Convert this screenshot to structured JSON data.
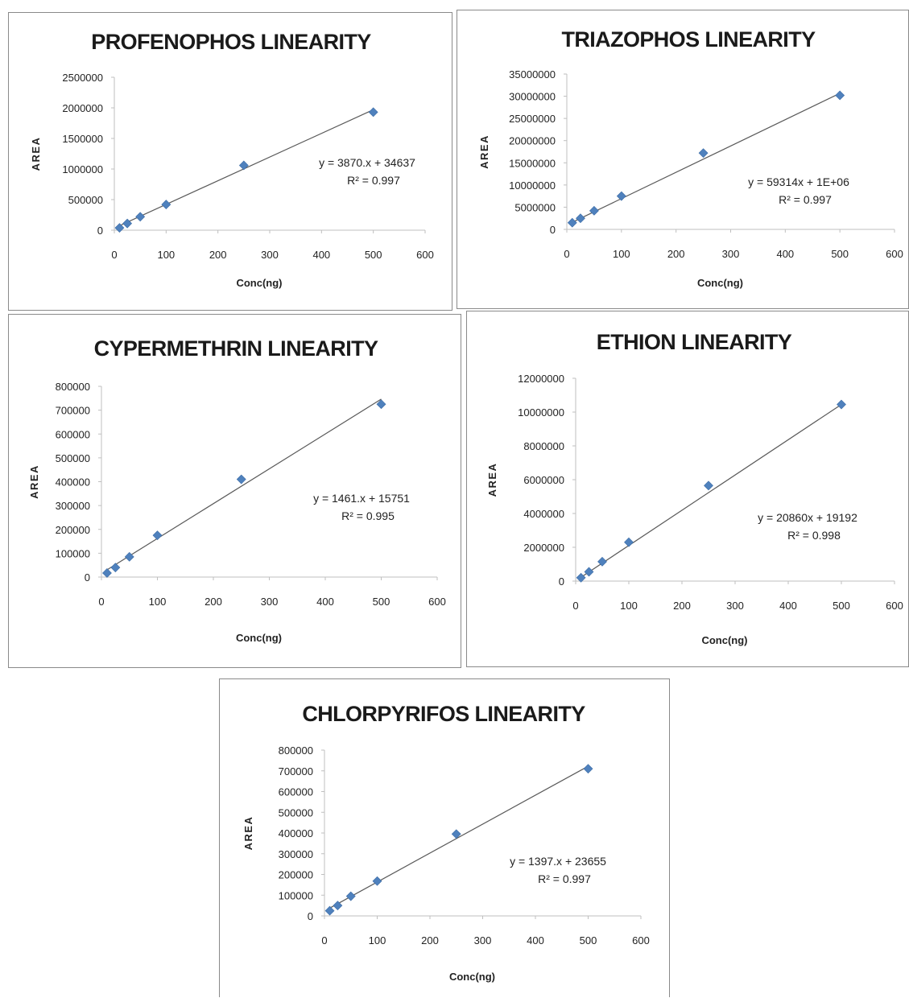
{
  "chart_data": [
    {
      "type": "scatter",
      "title": "PROFENOPHOS LINEARITY",
      "xlabel": "Conc(ng)",
      "ylabel": "AREA",
      "xlim": [
        0,
        600
      ],
      "ylim": [
        0,
        2500000
      ],
      "xticks": [
        "0",
        "100",
        "200",
        "300",
        "400",
        "500",
        "600"
      ],
      "yticks": [
        "0",
        "500000",
        "1000000",
        "1500000",
        "2000000",
        "2500000"
      ],
      "x": [
        10,
        25,
        50,
        100,
        250,
        500
      ],
      "y": [
        38000,
        110000,
        220000,
        420000,
        1060000,
        1930000
      ],
      "equation": "y = 3870.x + 34637",
      "r2": "R² = 0.997",
      "trendline": {
        "slope": 3870,
        "intercept": 34637
      },
      "marker_color": "#4f81bd",
      "line_color": "#595959"
    },
    {
      "type": "scatter",
      "title": "TRIAZOPHOS LINEARITY",
      "xlabel": "Conc(ng)",
      "ylabel": "AREA",
      "xlim": [
        0,
        600
      ],
      "ylim": [
        0,
        35000000
      ],
      "xticks": [
        "0",
        "100",
        "200",
        "300",
        "400",
        "500",
        "600"
      ],
      "yticks": [
        "0",
        "5000000",
        "10000000",
        "15000000",
        "20000000",
        "25000000",
        "30000000",
        "35000000"
      ],
      "x": [
        10,
        25,
        50,
        100,
        250,
        500
      ],
      "y": [
        1500000,
        2500000,
        4200000,
        7500000,
        17200000,
        30200000
      ],
      "equation": "y = 59314x + 1E+06",
      "r2": "R² = 0.997",
      "trendline": {
        "slope": 59314,
        "intercept": 1000000
      },
      "marker_color": "#4f81bd",
      "line_color": "#595959"
    },
    {
      "type": "scatter",
      "title": "CYPERMETHRIN LINEARITY",
      "xlabel": "Conc(ng)",
      "ylabel": "AREA",
      "xlim": [
        0,
        600
      ],
      "ylim": [
        0,
        800000
      ],
      "xticks": [
        "0",
        "100",
        "200",
        "300",
        "400",
        "500",
        "600"
      ],
      "yticks": [
        "0",
        "100000",
        "200000",
        "300000",
        "400000",
        "500000",
        "600000",
        "700000",
        "800000"
      ],
      "x": [
        10,
        25,
        50,
        100,
        250,
        500
      ],
      "y": [
        17000,
        40000,
        85000,
        175000,
        410000,
        725000
      ],
      "equation": "y = 1461.x + 15751",
      "r2": "R² = 0.995",
      "trendline": {
        "slope": 1461,
        "intercept": 15751
      },
      "marker_color": "#4f81bd",
      "line_color": "#595959"
    },
    {
      "type": "scatter",
      "title": "ETHION LINEARITY",
      "xlabel": "Conc(ng)",
      "ylabel": "AREA",
      "xlim": [
        0,
        600
      ],
      "ylim": [
        0,
        12000000
      ],
      "xticks": [
        "0",
        "100",
        "200",
        "300",
        "400",
        "500",
        "600"
      ],
      "yticks": [
        "0",
        "2000000",
        "4000000",
        "6000000",
        "8000000",
        "10000000",
        "12000000"
      ],
      "x": [
        10,
        25,
        50,
        100,
        250,
        500
      ],
      "y": [
        200000,
        550000,
        1150000,
        2300000,
        5650000,
        10450000
      ],
      "equation": "y = 20860x + 19192",
      "r2": "R² = 0.998",
      "trendline": {
        "slope": 20860,
        "intercept": 19192
      },
      "marker_color": "#4f81bd",
      "line_color": "#595959"
    },
    {
      "type": "scatter",
      "title": "CHLORPYRIFOS LINEARITY",
      "xlabel": "Conc(ng)",
      "ylabel": "AREA",
      "xlim": [
        0,
        600
      ],
      "ylim": [
        0,
        800000
      ],
      "xticks": [
        "0",
        "100",
        "200",
        "300",
        "400",
        "500",
        "600"
      ],
      "yticks": [
        "0",
        "100000",
        "200000",
        "300000",
        "400000",
        "500000",
        "600000",
        "700000",
        "800000"
      ],
      "x": [
        10,
        25,
        50,
        100,
        250,
        500
      ],
      "y": [
        25000,
        50000,
        95000,
        168000,
        395000,
        710000
      ],
      "equation": "y = 1397.x + 23655",
      "r2": "R² = 0.997",
      "trendline": {
        "slope": 1397,
        "intercept": 23655
      },
      "marker_color": "#4f81bd",
      "line_color": "#595959"
    }
  ]
}
